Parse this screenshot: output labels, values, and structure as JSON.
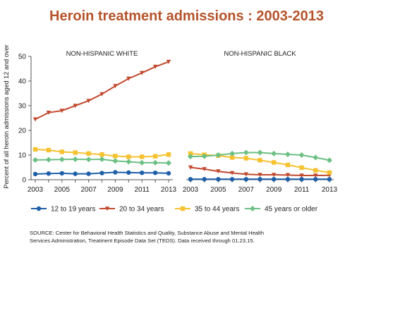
{
  "title": "Heroin treatment admissions : 2003-2013",
  "source_note": "SOURCE: Center for Behavioral Health Statistics and Quality, Substance Abuse and Mental Health Services Administration, Treatment Episode Data Set (TEDS). Data received through 01.23.15.",
  "colors": {
    "title": "#b5532b",
    "12 to 19 years": "#1f5fa8",
    "20 to 34 years": "#c24a30",
    "35 to 44 years": "#f5c231",
    "45 years or older": "#6cc084"
  },
  "chart_data": [
    {
      "type": "line",
      "panel_title": "NON-HISPANIC WHITE",
      "ylabel": "Percent of all heroin admissions aged 12 and over",
      "xlabel": "",
      "ylim": [
        0,
        50
      ],
      "yticks": [
        0,
        10,
        20,
        30,
        40,
        50
      ],
      "x": [
        2003,
        2004,
        2005,
        2006,
        2007,
        2008,
        2009,
        2010,
        2011,
        2012,
        2013
      ],
      "xticks": [
        2003,
        2005,
        2007,
        2009,
        2011,
        2013
      ],
      "legend": "bottom",
      "series": [
        {
          "name": "12 to 19 years",
          "marker": "circle",
          "values": [
            2.3,
            2.5,
            2.6,
            2.4,
            2.4,
            2.7,
            3.0,
            2.9,
            2.8,
            2.8,
            2.6
          ]
        },
        {
          "name": "20 to 34 years",
          "marker": "triangle-down",
          "values": [
            24.5,
            27.2,
            28.0,
            30.0,
            32.0,
            34.7,
            38.0,
            41.0,
            43.3,
            45.8,
            47.8
          ]
        },
        {
          "name": "35 to 44 years",
          "marker": "square",
          "values": [
            12.3,
            12.0,
            11.3,
            11.0,
            10.6,
            10.2,
            9.6,
            9.3,
            9.3,
            9.5,
            10.2
          ]
        },
        {
          "name": "45 years or older",
          "marker": "diamond",
          "values": [
            8.0,
            8.1,
            8.2,
            8.3,
            8.2,
            8.3,
            7.6,
            7.3,
            6.9,
            6.9,
            6.8
          ]
        }
      ]
    },
    {
      "type": "line",
      "panel_title": "NON-HISPANIC BLACK",
      "ylim": [
        0,
        50
      ],
      "x": [
        2003,
        2004,
        2005,
        2006,
        2007,
        2008,
        2009,
        2010,
        2011,
        2012,
        2013
      ],
      "xticks": [
        2003,
        2005,
        2007,
        2009,
        2011,
        2013
      ],
      "series": [
        {
          "name": "12 to 19 years",
          "marker": "circle",
          "values": [
            0.2,
            0.2,
            0.2,
            0.2,
            0.2,
            0.2,
            0.2,
            0.2,
            0.2,
            0.2,
            0.2
          ]
        },
        {
          "name": "20 to 34 years",
          "marker": "triangle-down",
          "values": [
            5.0,
            4.3,
            3.4,
            2.7,
            2.2,
            2.0,
            2.0,
            1.9,
            1.7,
            1.7,
            1.8
          ]
        },
        {
          "name": "35 to 44 years",
          "marker": "square",
          "values": [
            10.6,
            10.1,
            9.8,
            9.0,
            8.7,
            7.9,
            7.0,
            6.0,
            4.9,
            3.8,
            2.9
          ]
        },
        {
          "name": "45 years or older",
          "marker": "diamond",
          "values": [
            9.4,
            9.5,
            10.0,
            10.6,
            11.0,
            11.0,
            10.6,
            10.3,
            10.0,
            9.0,
            7.9
          ]
        }
      ]
    }
  ]
}
